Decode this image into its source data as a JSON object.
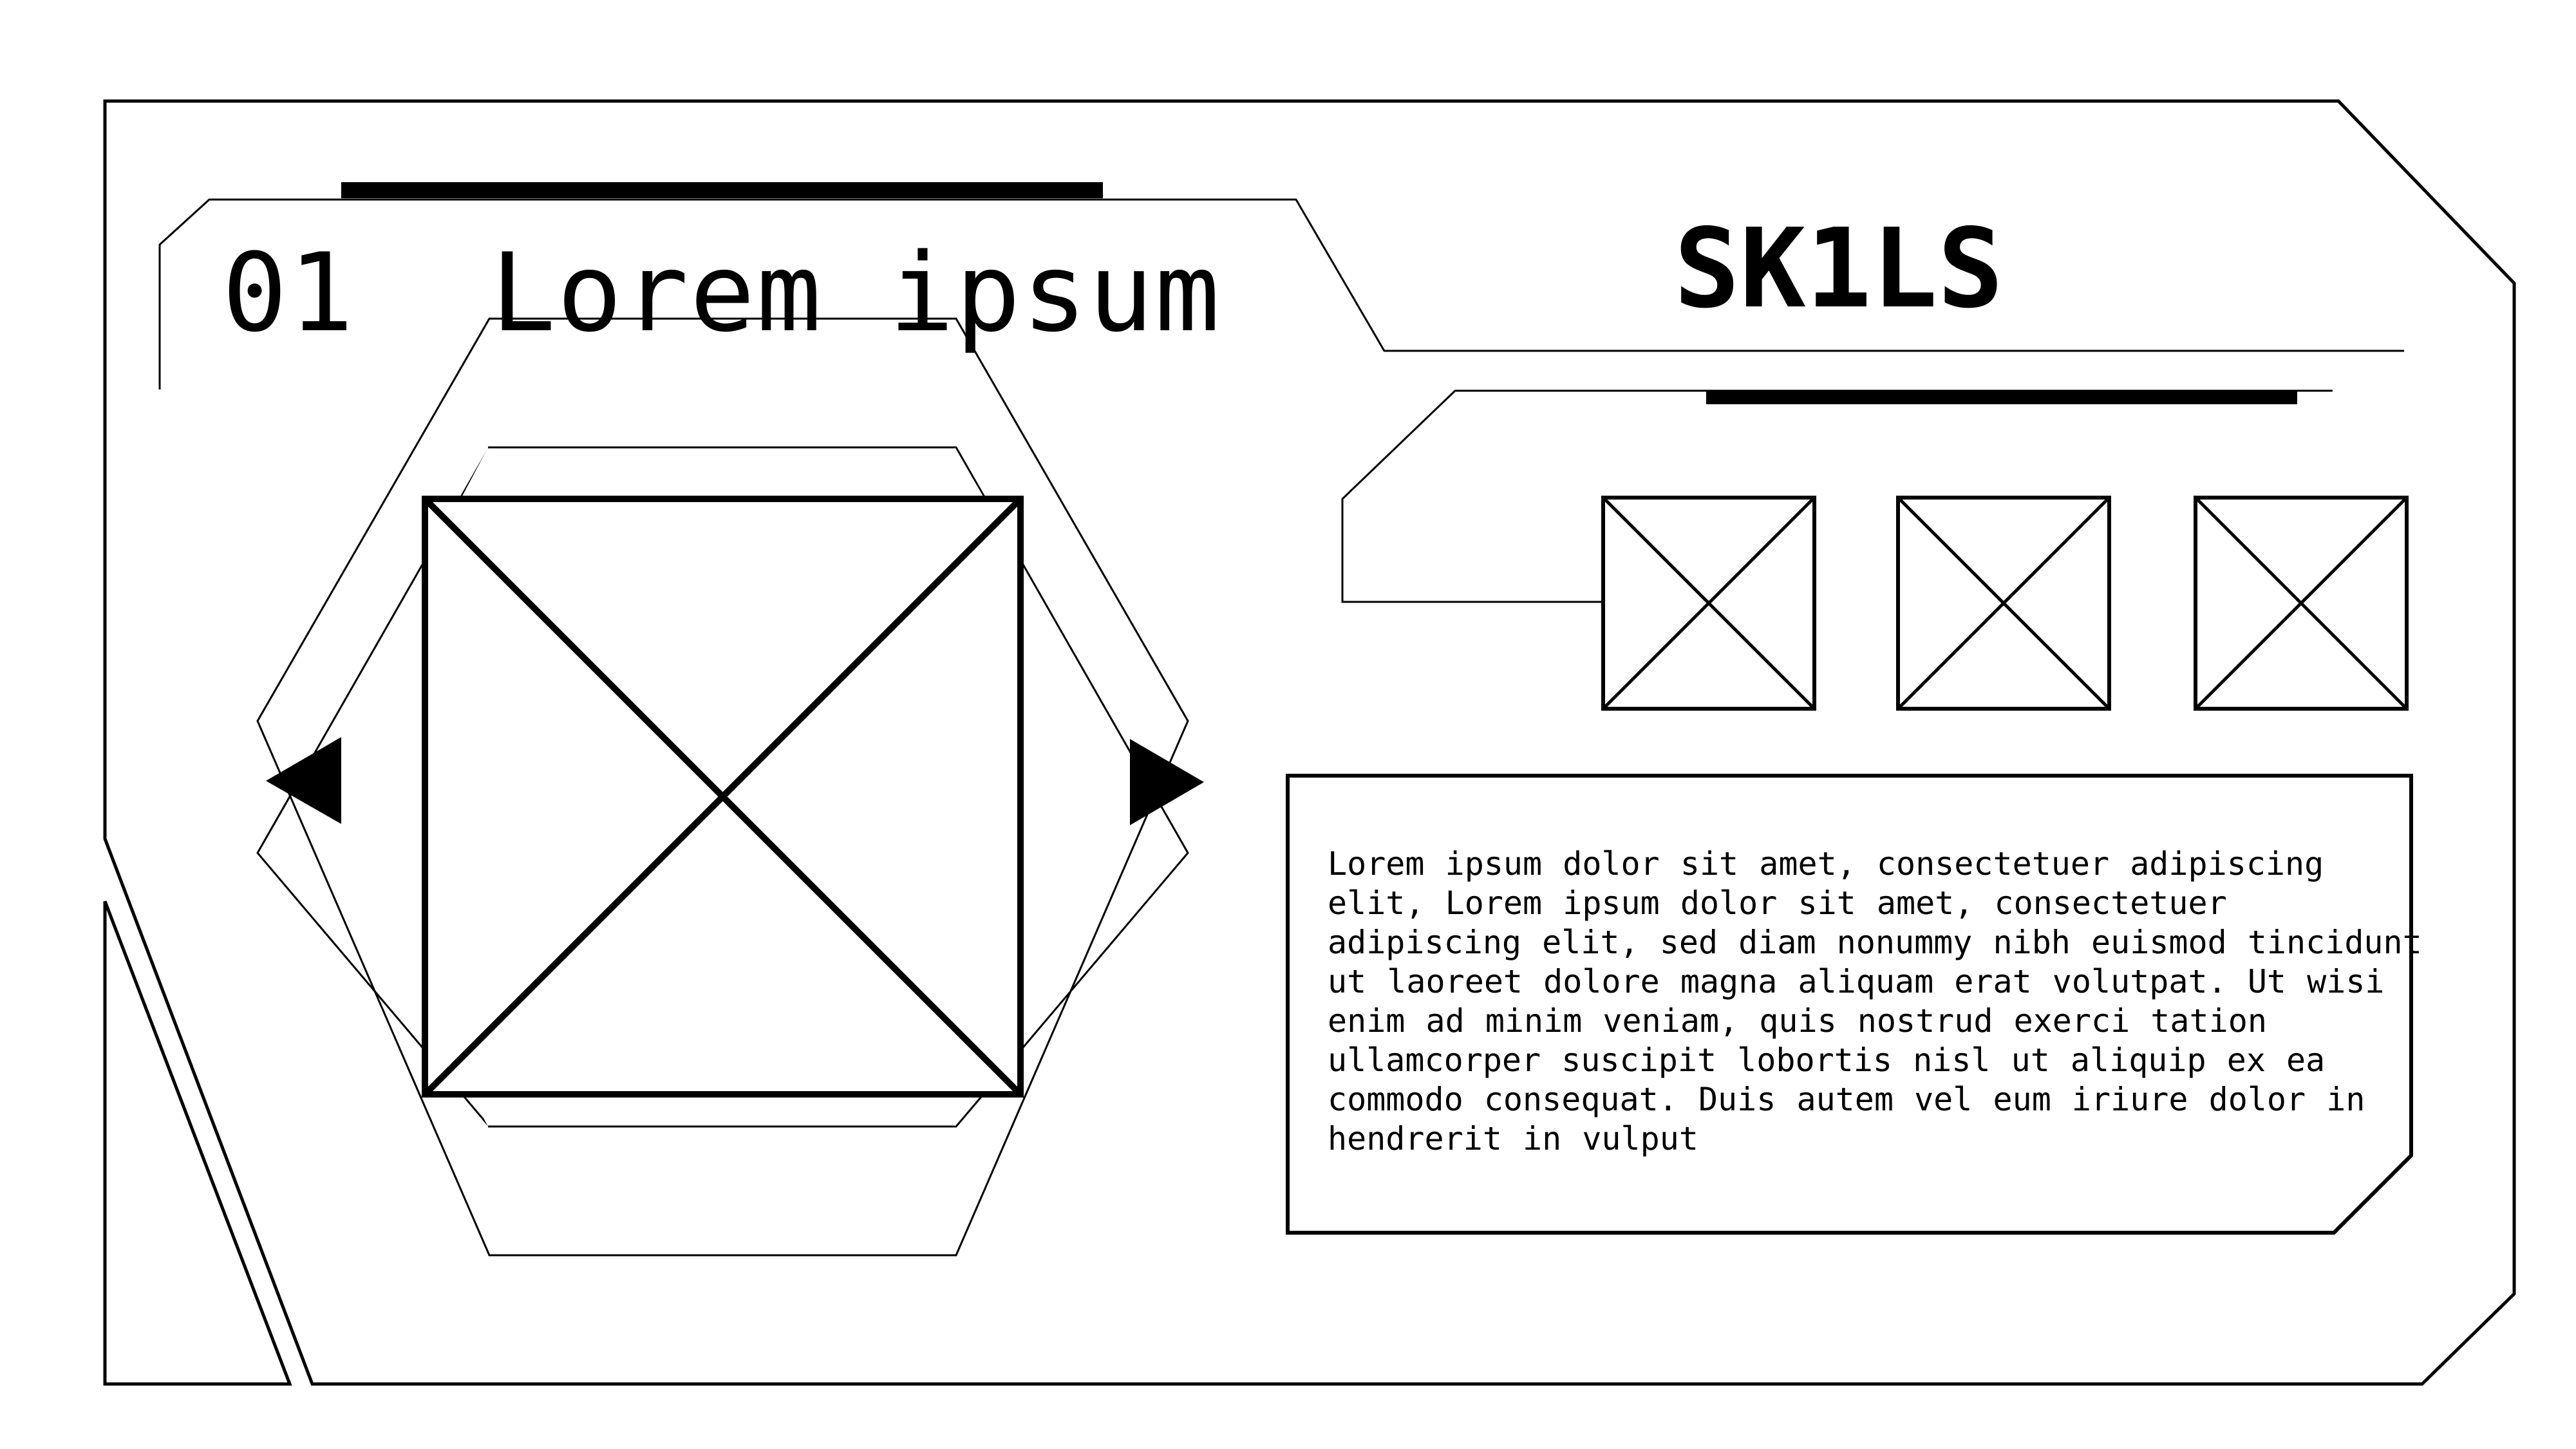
{
  "header": {
    "number": "01",
    "title": "Lorem ipsum"
  },
  "skills": {
    "heading": "SK1LS",
    "icon_count": 3
  },
  "description": {
    "text": "Lorem ipsum dolor sit amet, consectetuer adipiscing elit, Lorem ipsum dolor sit amet, consectetuer adipiscing elit, sed diam nonummy nibh euismod tincidunt ut laoreet dolore magna aliquam erat volutpat. Ut wisi enim ad minim veniam, quis nostrud exerci tation ullamcorper suscipit lobortis nisl ut aliquip ex ea commodo consequat. Duis autem vel eum iriure dolor in hendrerit in vulput"
  },
  "icons": {
    "prev": "triangle-left-icon",
    "next": "triangle-right-icon",
    "placeholder": "image-placeholder-icon"
  },
  "colors": {
    "stroke": "#000000",
    "background": "#ffffff"
  }
}
